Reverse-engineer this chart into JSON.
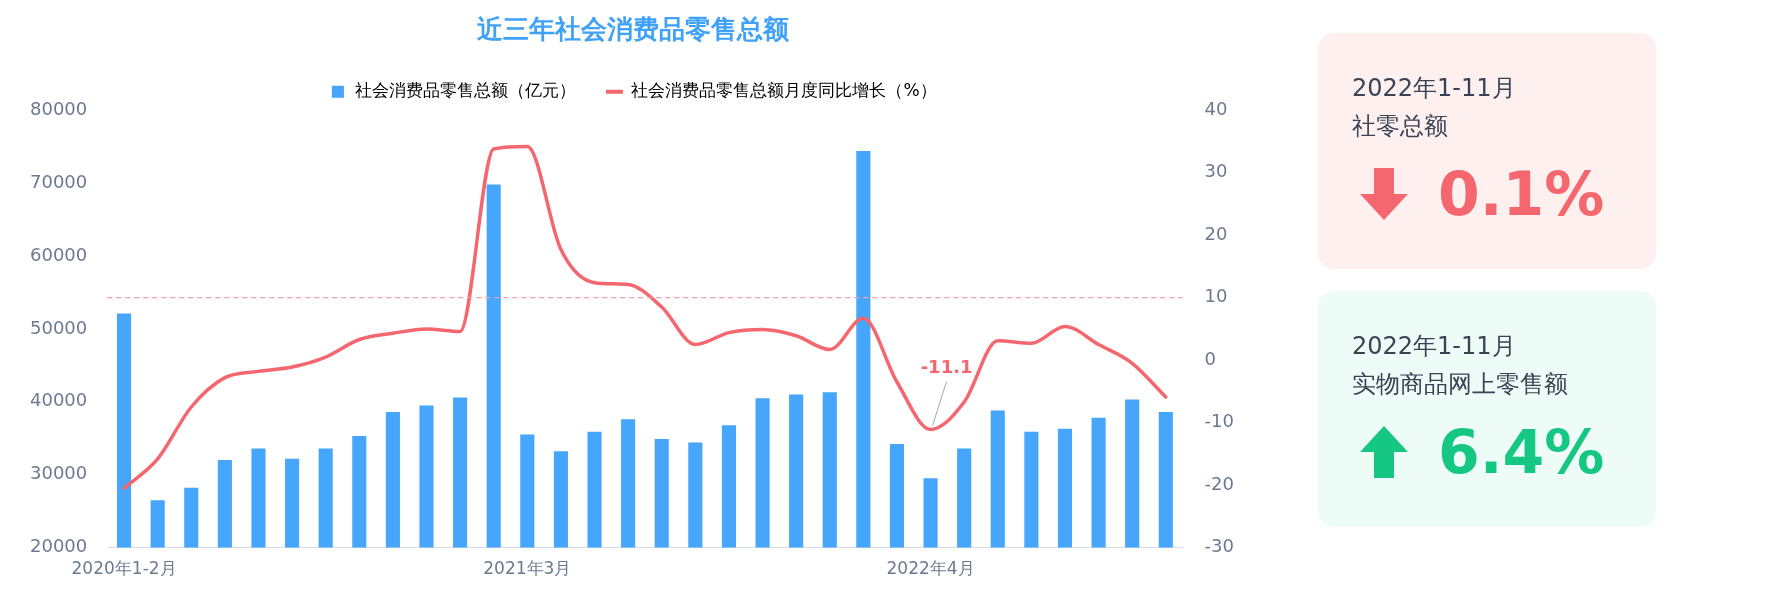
{
  "chart_data": [
    {
      "type": "bar",
      "title": "近三年社会消费品零售总额",
      "categories": [
        "2020年1-2月",
        null,
        null,
        null,
        null,
        null,
        null,
        null,
        null,
        null,
        null,
        null,
        "2021年3月",
        null,
        null,
        null,
        null,
        null,
        null,
        null,
        null,
        null,
        null,
        null,
        "2022年4月",
        null,
        null,
        null,
        null,
        null,
        null,
        null
      ],
      "series": [
        {
          "name": "社会消费品零售总额（亿元）",
          "type": "bar",
          "color": "#45a6fb",
          "values": [
            52100,
            26500,
            28200,
            32000,
            33600,
            32200,
            33600,
            35300,
            38600,
            39500,
            40600,
            69800,
            35500,
            33200,
            35900,
            37600,
            34900,
            34400,
            36800,
            40500,
            41000,
            41300,
            74400,
            34200,
            29500,
            33600,
            38800,
            35900,
            36300,
            37800,
            40300,
            38600
          ]
        },
        {
          "name": "社会消费品零售总额月度同比增长（%）",
          "type": "line",
          "axis": "y2",
          "color": "#f4676f",
          "values": [
            -20.5,
            -15.8,
            -7.5,
            -2.8,
            -1.8,
            -1.1,
            0.5,
            3.3,
            4.3,
            5.0,
            4.6,
            33.8,
            34.2,
            17.7,
            12.4,
            12.1,
            8.5,
            2.5,
            4.4,
            4.9,
            3.9,
            1.7,
            6.7,
            -3.5,
            -11.1,
            -6.7,
            3.1,
            2.7,
            5.4,
            2.5,
            -0.5,
            -5.9
          ]
        }
      ],
      "ylim": [
        20000,
        80000
      ],
      "yticks": [
        20000,
        30000,
        40000,
        50000,
        60000,
        70000,
        80000
      ],
      "y2lim": [
        -30,
        40
      ],
      "y2ticks": [
        -30,
        -20,
        -10,
        0,
        10,
        20,
        30,
        40
      ],
      "ref_lines": [
        {
          "axis": "y2",
          "value": 10,
          "color": "#f0a0a8",
          "line_style": "dashed"
        }
      ],
      "annotations": [
        {
          "text": "-11.1",
          "x": "2022年4月"
        }
      ],
      "legend": "top",
      "grid": false,
      "marker": "none",
      "line_style": "solid"
    },
    {
      "type": "other",
      "annotations": [
        "2022年1-11月",
        "社零总额",
        "0.1%",
        "2022年1-11月",
        "实物商品网上零售额",
        "6.4%"
      ]
    }
  ]
}
